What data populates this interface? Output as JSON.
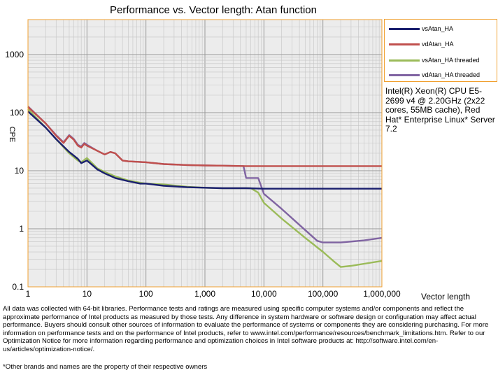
{
  "chart_data": {
    "type": "line",
    "title": "Performance vs. Vector length: Atan function",
    "xlabel": "Vector length",
    "ylabel": "CPE",
    "x_scale": "log",
    "y_scale": "log",
    "xlim": [
      1,
      1000000
    ],
    "ylim": [
      0.1,
      4000
    ],
    "x_ticks": [
      "1",
      "10",
      "100",
      "1,000",
      "10,000",
      "100,000",
      "1,000,000"
    ],
    "y_ticks": [
      "0.1",
      "1",
      "10",
      "100",
      "1000"
    ],
    "grid": true,
    "legend": "right",
    "series": [
      {
        "name": "vsAtan_HA",
        "color": "#1a1f6e",
        "x": [
          1,
          2,
          3,
          5,
          7,
          8,
          10,
          15,
          20,
          30,
          50,
          80,
          100,
          200,
          500,
          1000,
          2000,
          4000,
          5000,
          10000,
          20000,
          50000,
          100000,
          200000,
          500000,
          1000000
        ],
        "y": [
          105,
          55,
          35,
          21,
          16,
          13.5,
          15,
          10.5,
          9,
          7.5,
          6.6,
          6,
          6,
          5.5,
          5.2,
          5.1,
          5,
          5,
          5,
          4.9,
          4.9,
          4.9,
          4.9,
          4.9,
          4.9,
          4.9
        ]
      },
      {
        "name": "vdAtan_HA",
        "color": "#c0504d",
        "x": [
          1,
          2,
          3,
          4,
          5,
          6,
          7,
          8,
          9,
          10,
          15,
          20,
          25,
          30,
          40,
          50,
          100,
          200,
          500,
          1000,
          2000,
          5000,
          10000,
          20000,
          50000,
          100000,
          200000,
          500000,
          1000000
        ],
        "y": [
          125,
          65,
          40,
          30,
          40,
          34,
          27,
          25,
          29,
          27,
          22,
          19,
          21,
          20,
          15,
          14.5,
          14,
          13,
          12.5,
          12.3,
          12.2,
          12,
          12,
          12,
          12,
          12,
          12,
          12,
          12
        ]
      },
      {
        "name": "vsAtan_HA threaded",
        "color": "#9bbb59",
        "x": [
          1,
          2,
          3,
          5,
          7,
          8,
          10,
          15,
          20,
          30,
          50,
          80,
          100,
          200,
          500,
          1000,
          2000,
          5000,
          6000,
          8000,
          10000,
          20000,
          50000,
          100000,
          150000,
          200000,
          300000,
          500000,
          1000000
        ],
        "y": [
          115,
          55,
          35,
          20,
          15,
          14,
          16.5,
          11,
          9.5,
          8,
          6.8,
          6.2,
          6,
          5.8,
          5.3,
          5.1,
          5,
          5,
          5,
          4.2,
          2.8,
          1.5,
          0.7,
          0.4,
          0.28,
          0.22,
          0.23,
          0.25,
          0.28
        ]
      },
      {
        "name": "vdAtan_HA threaded",
        "color": "#8064a2",
        "x": [
          1,
          2,
          3,
          4,
          5,
          6,
          7,
          8,
          9,
          10,
          15,
          20,
          25,
          30,
          40,
          50,
          100,
          200,
          500,
          1000,
          2000,
          4500,
          5000,
          6000,
          8000,
          10000,
          20000,
          50000,
          80000,
          100000,
          200000,
          500000,
          1000000
        ],
        "y": [
          128,
          65,
          41,
          31,
          41,
          35,
          28,
          26,
          30,
          28,
          22,
          19,
          21,
          20,
          15,
          14.5,
          14,
          13,
          12.5,
          12.3,
          12.2,
          12,
          7.5,
          7.5,
          7.5,
          4,
          2.2,
          0.95,
          0.62,
          0.58,
          0.58,
          0.63,
          0.7
        ]
      }
    ]
  },
  "system_info": "Intel(R) Xeon(R) CPU E5-2699 v4 @ 2.20GHz (2x22 cores, 55MB cache), Red Hat* Enterprise Linux* Server 7.2",
  "disclaimer": "All data was collected with 64-bit libraries. Performance tests and ratings are measured using specific computer systems and/or components and reflect the approximate performance of Intel products as measured by those tests. Any difference in system hardware or software design or configuration may affect actual performance. Buyers should consult other sources of information to evaluate the performance of systems or components they are considering purchasing. For more information on performance tests and on the performance of Intel products, refer to www.intel.com/performance/resources/benchmark_limitations.htm. Refer to our Optimization Notice for more information regarding performance and optimization choices in Intel software products at: http://software.intel.com/en-us/articles/optimization-notice/.",
  "footnote": "*Other brands and names are the property of their respective owners"
}
